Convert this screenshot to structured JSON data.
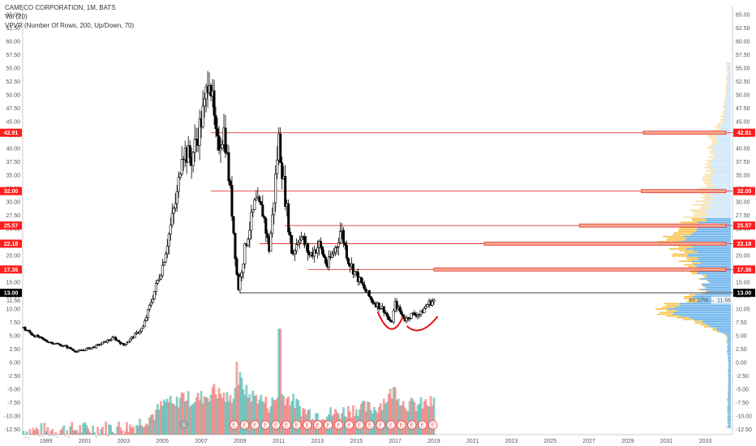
{
  "legend": {
    "title": "CAMECO CORPORATION, 1M, BATS",
    "vol": "Vol (20)",
    "vpvr": "VPVR (Number Of Rows, 200, Up/Down, 70)"
  },
  "colors": {
    "up": "#26a69a",
    "down": "#ef5350",
    "candle": "#000000",
    "level_line": "#e53935",
    "level_tag": "#ff1e1e",
    "current_tag": "#000000",
    "vp_up": "#4aa3e8",
    "vp_down": "#f5b82e",
    "marker": "#e3171b"
  },
  "chart_data": {
    "type": "candlestick",
    "title": "CAMECO CORPORATION, 1M, BATS",
    "ylim": [
      -13.5,
      66.5
    ],
    "yticks": [
      65.0,
      62.5,
      60.0,
      57.5,
      55.0,
      52.5,
      50.0,
      47.5,
      45.0,
      42.5,
      40.0,
      37.5,
      35.0,
      32.5,
      30.0,
      27.5,
      25.0,
      22.5,
      20.0,
      17.5,
      15.0,
      12.5,
      10.0,
      7.5,
      5.0,
      2.5,
      0.0,
      -2.5,
      -5.0,
      -7.5,
      -10.0,
      -12.5
    ],
    "ytick_labels": [
      "65.00",
      "62.50",
      "60.00",
      "57.50",
      "55.00",
      "52.50",
      "50.00",
      "47.50",
      "45.00",
      "42.50",
      "40.00",
      "37.50",
      "35.00",
      "32.50",
      "30.00",
      "27.50",
      "25.00",
      "22.50",
      "20.00",
      "17.50",
      "15.00",
      "12.50",
      "10.00",
      "7.50",
      "5.00",
      "2.50",
      "0.00",
      "-2.50",
      "-5.00",
      "-7.50",
      "-10.00",
      "-12.50"
    ],
    "xticks": [
      "1999",
      "2001",
      "2003",
      "2005",
      "2007",
      "2009",
      "2011",
      "2013",
      "2015",
      "2017",
      "2019",
      "2021",
      "2023",
      "2025",
      "2027",
      "2029",
      "2031",
      "2033"
    ],
    "xrange_years": [
      1997.8,
      2034.4
    ],
    "price_path": [
      [
        1997.8,
        6.5
      ],
      [
        1998.3,
        5.2
      ],
      [
        1999.0,
        4.0
      ],
      [
        2000.0,
        3.0
      ],
      [
        2000.6,
        2.0
      ],
      [
        2001.5,
        2.9
      ],
      [
        2002.5,
        4.6
      ],
      [
        2003.0,
        3.2
      ],
      [
        2004.0,
        6.5
      ],
      [
        2005.0,
        18.0
      ],
      [
        2005.8,
        32.0
      ],
      [
        2006.0,
        40.0
      ],
      [
        2006.5,
        38.0
      ],
      [
        2007.2,
        48.0
      ],
      [
        2007.4,
        55.5
      ],
      [
        2007.8,
        40.0
      ],
      [
        2008.2,
        43.5
      ],
      [
        2008.6,
        28.0
      ],
      [
        2008.9,
        13.5
      ],
      [
        2009.3,
        22.0
      ],
      [
        2009.8,
        30.0
      ],
      [
        2010.2,
        28.0
      ],
      [
        2010.5,
        21.0
      ],
      [
        2010.7,
        28.0
      ],
      [
        2011.0,
        42.0
      ],
      [
        2011.3,
        32.0
      ],
      [
        2011.7,
        20.0
      ],
      [
        2012.1,
        24.0
      ],
      [
        2012.6,
        20.0
      ],
      [
        2013.1,
        22.0
      ],
      [
        2013.5,
        18.0
      ],
      [
        2014.0,
        22.0
      ],
      [
        2014.2,
        25.0
      ],
      [
        2014.6,
        19.0
      ],
      [
        2015.2,
        15.0
      ],
      [
        2015.8,
        11.5
      ],
      [
        2016.4,
        10.0
      ],
      [
        2016.8,
        7.0
      ],
      [
        2017.0,
        11.0
      ],
      [
        2017.5,
        8.0
      ],
      [
        2017.9,
        9.0
      ],
      [
        2018.3,
        9.0
      ],
      [
        2018.7,
        11.0
      ],
      [
        2019.0,
        11.56
      ]
    ],
    "volume_path": [
      [
        1997.8,
        -13.2
      ],
      [
        2001.0,
        -12.9
      ],
      [
        2003.5,
        -12.4
      ],
      [
        2004.6,
        -10.0
      ],
      [
        2005.3,
        -7.5
      ],
      [
        2005.6,
        -9.0
      ],
      [
        2006.0,
        -6.5
      ],
      [
        2006.5,
        -7.5
      ],
      [
        2007.0,
        -7.0
      ],
      [
        2007.8,
        -6.0
      ],
      [
        2008.5,
        -7.5
      ],
      [
        2009.0,
        -3.5
      ],
      [
        2009.4,
        -6.5
      ],
      [
        2010.0,
        -7.0
      ],
      [
        2010.5,
        -8.5
      ],
      [
        2011.1,
        -6.5
      ],
      [
        2011.7,
        -7.5
      ],
      [
        2012.3,
        -9.5
      ],
      [
        2013.0,
        -10.0
      ],
      [
        2014.0,
        -10.0
      ],
      [
        2015.0,
        -9.0
      ],
      [
        2016.0,
        -9.0
      ],
      [
        2016.6,
        -7.0
      ],
      [
        2017.0,
        -5.5
      ],
      [
        2017.4,
        -8.0
      ],
      [
        2018.0,
        -8.5
      ],
      [
        2019.0,
        -8.0
      ]
    ],
    "volume_spikes": [
      [
        2011.05,
        6.3
      ],
      [
        2008.85,
        0.1
      ],
      [
        2007.65,
        -4.0
      ]
    ],
    "levels": [
      {
        "price": 42.91,
        "label": "42.91",
        "start_year": 2007.5,
        "bar_start_year": 2029.8
      },
      {
        "price": 32.0,
        "label": "32.00",
        "start_year": 2007.5,
        "bar_start_year": 2029.7
      },
      {
        "price": 25.57,
        "label": "25.57",
        "start_year": 2011.3,
        "bar_start_year": 2026.5
      },
      {
        "price": 22.18,
        "label": "22.18",
        "start_year": 2010.0,
        "bar_start_year": 2021.6
      },
      {
        "price": 17.36,
        "label": "17.36",
        "start_year": 2012.5,
        "bar_start_year": 2019.0
      }
    ],
    "current": {
      "price": 13.0,
      "label": "13.00",
      "start_year": 2009.0
    },
    "last_price": {
      "price": 11.56,
      "label": "11.56",
      "poc_label": "85.27%"
    },
    "event_markers": [
      "S",
      "E",
      "E",
      "E",
      "E",
      "E",
      "E",
      "E",
      "E",
      "E",
      "E",
      "E",
      "E",
      "E",
      "E",
      "E",
      "E",
      "E",
      "E",
      "E",
      "E"
    ],
    "volume_profile": [
      [
        -10.0,
        0.05,
        0.04
      ],
      [
        0.0,
        0.04,
        0.04
      ],
      [
        5.0,
        0.06,
        0.05
      ],
      [
        7.5,
        0.45,
        0.35
      ],
      [
        9.0,
        0.9,
        0.7
      ],
      [
        10.0,
        0.95,
        0.8
      ],
      [
        11.5,
        0.75,
        0.55
      ],
      [
        13.0,
        0.45,
        0.4
      ],
      [
        15.0,
        0.35,
        0.35
      ],
      [
        17.5,
        0.55,
        0.45
      ],
      [
        20.0,
        0.75,
        0.55
      ],
      [
        22.5,
        0.9,
        0.65
      ],
      [
        25.0,
        0.85,
        0.55
      ],
      [
        27.5,
        0.55,
        0.35
      ],
      [
        30.0,
        0.45,
        0.3
      ],
      [
        32.5,
        0.4,
        0.3
      ],
      [
        35.0,
        0.35,
        0.25
      ],
      [
        37.5,
        0.3,
        0.25
      ],
      [
        40.0,
        0.3,
        0.25
      ],
      [
        42.5,
        0.3,
        0.2
      ],
      [
        45.0,
        0.15,
        0.1
      ],
      [
        47.5,
        0.1,
        0.08
      ],
      [
        52.5,
        0.06,
        0.04
      ]
    ]
  }
}
